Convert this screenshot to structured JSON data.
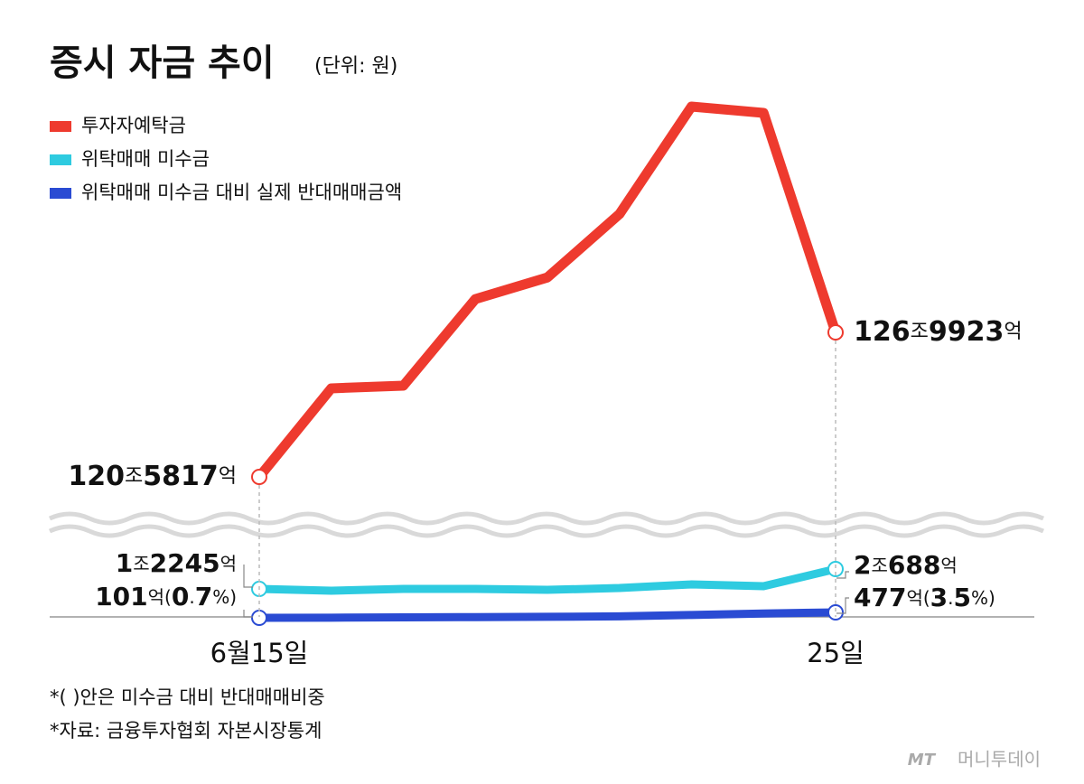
{
  "chart_data": {
    "type": "line",
    "title": "증시 자금 추이",
    "subtitle": "(단위: 원)",
    "categories": [
      "6월15일",
      null,
      null,
      null,
      null,
      null,
      null,
      null,
      "25일"
    ],
    "series": [
      {
        "name": "투자자예탁금",
        "color": "#ee3a2e",
        "values": [
          1205817,
          1245100,
          1246300,
          1284700,
          1294300,
          1322400,
          1370100,
          1367300,
          1269923
        ],
        "value_labels": [
          "120조5817억",
          null,
          null,
          null,
          null,
          null,
          null,
          null,
          "126조9923억"
        ]
      },
      {
        "name": "위탁매매 미수금",
        "color": "#2ecbe0",
        "values": [
          12245,
          11500,
          12245,
          12245,
          11860,
          12630,
          14165,
          13400,
          20688
        ],
        "value_labels": [
          "1조2245억",
          null,
          null,
          null,
          null,
          null,
          null,
          null,
          "2조688억"
        ]
      },
      {
        "name": "위탁매매 미수금 대비 실제 반대매매금액",
        "color": "#2a4bd3",
        "values": [
          101,
          110,
          130,
          150,
          170,
          200,
          300,
          400,
          477
        ],
        "value_labels": [
          "101억(0.7%)",
          null,
          null,
          null,
          null,
          null,
          null,
          null,
          "477억(3.5%)"
        ]
      }
    ],
    "notes": [
      "*( )안은 미수금 대비 반대매매비중",
      "*자료: 금융투자협회 자본시장통계"
    ],
    "logo": "MT",
    "logo_name": "머니투데이"
  }
}
